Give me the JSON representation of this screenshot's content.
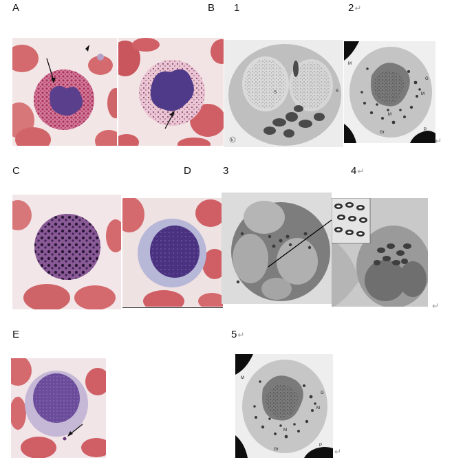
{
  "labels": {
    "A": "A",
    "B": "B",
    "n1": "1",
    "n2": "2",
    "C": "C",
    "D": "D",
    "n3": "3",
    "n4": "4",
    "E": "E",
    "n5": "5"
  },
  "return_mark": "↵",
  "em_annotations": {
    "s": "S",
    "m": "M",
    "g": "G",
    "gr": "Gr",
    "p": "P",
    "b": "b"
  }
}
